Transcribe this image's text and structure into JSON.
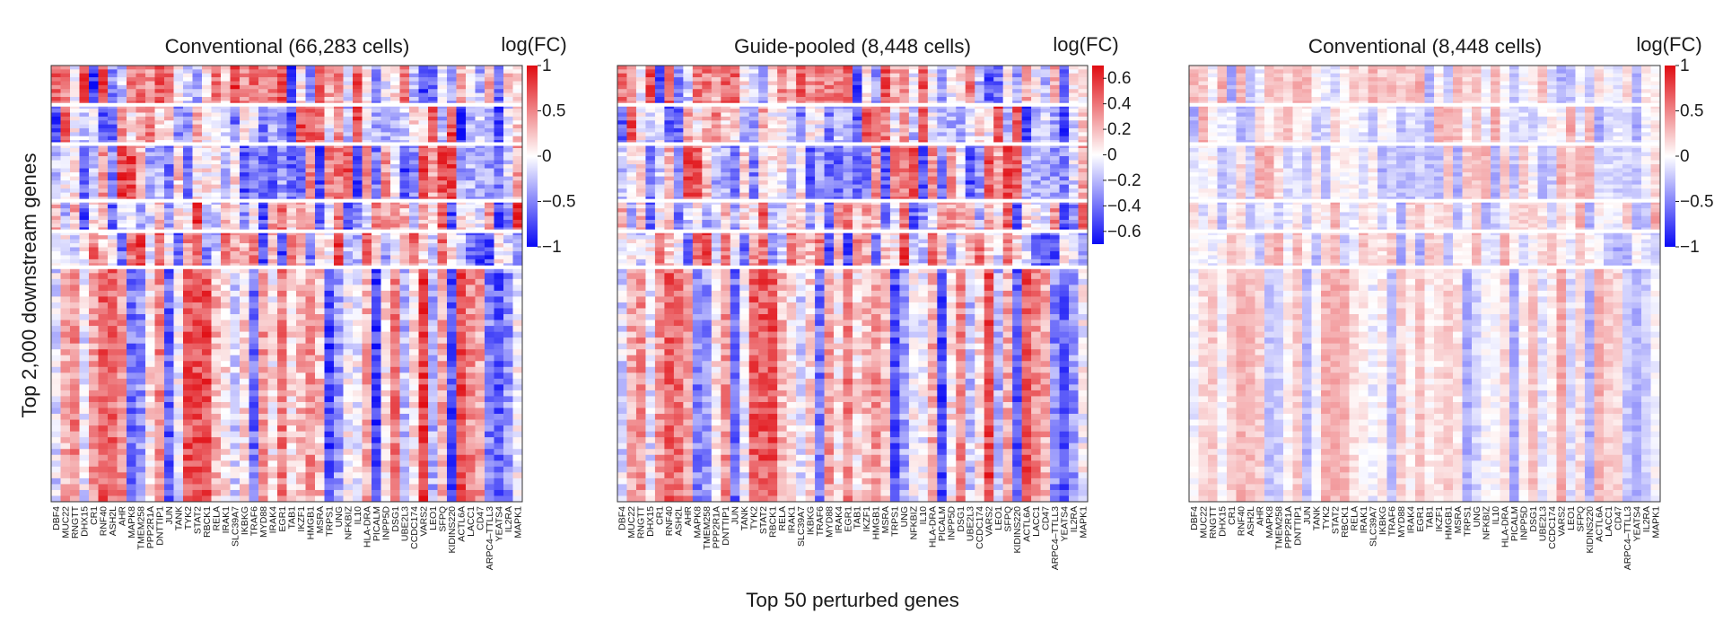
{
  "figure": {
    "ylabel": "Top 2,000 downstream genes",
    "xlabel": "Top 50 perturbed genes"
  },
  "colors": {
    "negative": "#0a0af5",
    "neutral": "#ffffff",
    "positive": "#e00c12",
    "separator": "#ffffff"
  },
  "chart_data": [
    {
      "type": "heatmap",
      "title": "Conventional (66,283 cells)",
      "colorbar": {
        "label": "log(FC)",
        "range": [
          -1,
          1
        ],
        "ticks": [
          1,
          0.5,
          0,
          -0.5,
          -1
        ],
        "tick_labels": [
          "1",
          "0.5",
          "0",
          "−0.5",
          "−1"
        ]
      },
      "gene_labels": [
        "DBF4",
        "MUC22",
        "RNGTT",
        "DHX15",
        "CR1",
        "RNF40",
        "ASH2L",
        "AHR",
        "MAPK8",
        "TMEM258",
        "PPP2R1A",
        "DNTTIP1",
        "JUN",
        "TANK",
        "TYK2",
        "STAT2",
        "RBCK1",
        "RELA",
        "IRAK1",
        "SLC39A7",
        "IKBKG",
        "TRAF6",
        "MYD88",
        "IRAK4",
        "EGR1",
        "TAB1",
        "IKZF1",
        "HMGB1",
        "MSRA",
        "TRPS1",
        "UNG",
        "NFKBIZ",
        "IL10",
        "HLA-DRA",
        "PICALM",
        "INPP5D",
        "DSG1",
        "UBE2L3",
        "CCDC174",
        "VARS2",
        "LEO1",
        "SFPQ",
        "KIDINS220",
        "ACTL6A",
        "LACC1",
        "CD47",
        "ARPC4–TTLL3",
        "YEATS4",
        "IL2RA",
        "MAPK1"
      ]
    },
    {
      "type": "heatmap",
      "title": "Guide-pooled (8,448 cells)",
      "colorbar": {
        "label": "log(FC)",
        "range": [
          -0.7,
          0.7
        ],
        "ticks": [
          0.6,
          0.4,
          0.2,
          0,
          -0.2,
          -0.4,
          -0.6
        ],
        "tick_labels": [
          "0.6",
          "0.4",
          "0.2",
          "0",
          "−0.2",
          "−0.4",
          "−0.6"
        ]
      },
      "gene_labels": [
        "DBF4",
        "MUC22",
        "RNGTT",
        "DHX15",
        "CR1",
        "RNF40",
        "ASH2L",
        "AHR",
        "MAPK8",
        "TMEM258",
        "PPP2R1A",
        "DNTTIP1",
        "JUN",
        "TANK",
        "TYK2",
        "STAT2",
        "RBCK1",
        "RELA",
        "IRAK1",
        "SLC39A7",
        "IKBKG",
        "TRAF6",
        "MYD88",
        "IRAK4",
        "EGR1",
        "TAB1",
        "IKZF1",
        "HMGB1",
        "MSRA",
        "TRPS1",
        "UNG",
        "NFKBIZ",
        "IL10",
        "HLA-DRA",
        "PICALM",
        "INPP5D",
        "DSG1",
        "UBE2L3",
        "CCDC174",
        "VARS2",
        "LEO1",
        "SFPQ",
        "KIDINS220",
        "ACTL6A",
        "LACC1",
        "CD47",
        "ARPC4–TTLL3",
        "YEATS4",
        "IL2RA",
        "MAPK1"
      ]
    },
    {
      "type": "heatmap",
      "title": "Conventional (8,448 cells)",
      "colorbar": {
        "label": "log(FC)",
        "range": [
          -1,
          1
        ],
        "ticks": [
          1,
          0.5,
          0,
          -0.5,
          -1
        ],
        "tick_labels": [
          "1",
          "0.5",
          "0",
          "−0.5",
          "−1"
        ]
      },
      "gene_labels": [
        "DBF4",
        "MUC22",
        "RNGTT",
        "DHX15",
        "CR1",
        "RNF40",
        "ASH2L",
        "AHR",
        "MAPK8",
        "TMEM258",
        "PPP2R1A",
        "DNTTIP1",
        "JUN",
        "TANK",
        "TYK2",
        "STAT2",
        "RBCK1",
        "RELA",
        "IRAK1",
        "SLC39A7",
        "IKBKG",
        "TRAF6",
        "MYD88",
        "IRAK4",
        "EGR1",
        "TAB1",
        "IKZF1",
        "HMGB1",
        "MSRA",
        "TRPS1",
        "UNG",
        "NFKBIZ",
        "IL10",
        "HLA-DRA",
        "PICALM",
        "INPP5D",
        "DSG1",
        "UBE2L3",
        "CCDC174",
        "VARS2",
        "LEO1",
        "SFPQ",
        "KIDINS220",
        "ACTL6A",
        "LACC1",
        "CD47",
        "ARPC4–TTLL3",
        "YEATS4",
        "IL2RA",
        "MAPK1"
      ]
    }
  ]
}
